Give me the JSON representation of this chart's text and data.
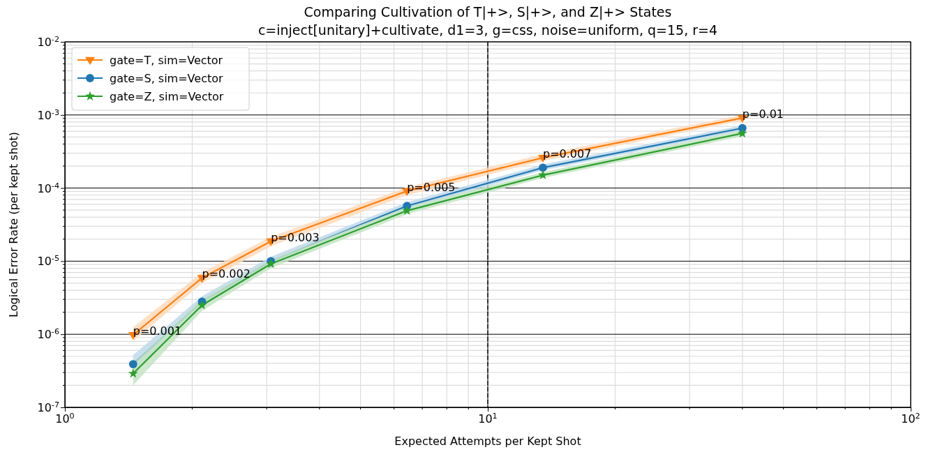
{
  "chart_data": {
    "type": "line",
    "title": "Comparing Cultivation of T|+>, S|+>, and Z|+> States",
    "subtitle": "c=inject[unitary]+cultivate, d1=3, g=css, noise=uniform, q=15, r=4",
    "xlabel": "Expected Attempts per Kept Shot",
    "ylabel": "Logical Error Rate (per kept shot)",
    "log": "xy",
    "grid": true,
    "legend": "top left",
    "xlim": [
      1,
      100
    ],
    "xticks": [
      {
        "value": 1,
        "label": "10$^{0}$"
      },
      {
        "value": 10,
        "label": "10$^{1}$"
      },
      {
        "value": 100,
        "label": "10$^{2}$"
      }
    ],
    "ylim": [
      1e-07,
      0.01
    ],
    "yticks": [
      {
        "value": 1e-07,
        "label": "10$^{-7}$"
      },
      {
        "value": 1e-06,
        "label": "10$^{-6}$"
      },
      {
        "value": 1e-05,
        "label": "10$^{-5}$"
      },
      {
        "value": 0.0001,
        "label": "10$^{-4}$"
      },
      {
        "value": 0.001,
        "label": "10$^{-3}$"
      },
      {
        "value": 0.01,
        "label": "10$^{-2}$"
      }
    ],
    "x": [
      1.45,
      2.11,
      3.07,
      6.44,
      13.5,
      40
    ],
    "series": [
      {
        "name": "gate=T, sim=Vector",
        "color": "#ff7f0e",
        "marker": "triangle",
        "values": [
          9.8e-07,
          5.9e-06,
          1.87e-05,
          9.1e-05,
          0.00026,
          0.00091
        ],
        "lower": [
          8e-07,
          5e-06,
          1.6e-05,
          8e-05,
          0.000235,
          0.00084
        ],
        "upper": [
          1.25e-06,
          7e-06,
          2.15e-05,
          0.000103,
          0.00029,
          0.001
        ]
      },
      {
        "name": "gate=S, sim=Vector",
        "color": "#1f77b4",
        "marker": "circle",
        "values": [
          3.9e-07,
          2.8e-06,
          1e-05,
          5.7e-05,
          0.00019,
          0.00066
        ],
        "lower": [
          3e-07,
          2.4e-06,
          8.8e-06,
          5.1e-05,
          0.000175,
          0.00061
        ],
        "upper": [
          5.2e-07,
          3.3e-06,
          1.15e-05,
          6.4e-05,
          0.00021,
          0.00072
        ]
      },
      {
        "name": "gate=Z, sim=Vector",
        "color": "#2ca02c",
        "marker": "star",
        "values": [
          2.9e-07,
          2.5e-06,
          9.2e-06,
          4.9e-05,
          0.00015,
          0.00056
        ],
        "lower": [
          2e-07,
          2.1e-06,
          8e-06,
          4.4e-05,
          0.000137,
          0.00051
        ],
        "upper": [
          4e-07,
          3e-06,
          1.05e-05,
          5.5e-05,
          0.000165,
          0.00062
        ]
      }
    ],
    "ref_lines": [
      {
        "axis": "x",
        "value": 10,
        "color": "#000000",
        "line_style": "dashed"
      }
    ],
    "annotations": [
      {
        "text": "p=0.001",
        "x": 1.45,
        "y": 9.8e-07
      },
      {
        "text": "p=0.002",
        "x": 2.11,
        "y": 5.9e-06
      },
      {
        "text": "p=0.003",
        "x": 3.07,
        "y": 1.87e-05
      },
      {
        "text": "p=0.005",
        "x": 6.44,
        "y": 9.1e-05
      },
      {
        "text": "p=0.007",
        "x": 13.5,
        "y": 0.00026
      },
      {
        "text": "p=0.01",
        "x": 40,
        "y": 0.00091
      }
    ]
  }
}
